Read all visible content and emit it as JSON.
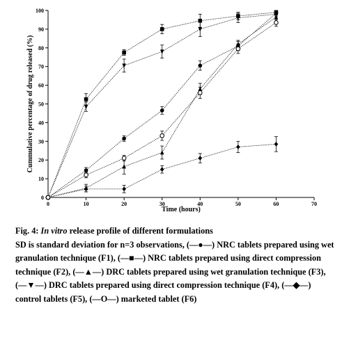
{
  "chart_data": {
    "type": "line",
    "xlabel": "Time (hours)",
    "ylabel": "Cummulative percentage of drug released (%)",
    "xlim": [
      0,
      70
    ],
    "ylim": [
      0,
      100
    ],
    "x_ticks": [
      "0",
      "10",
      "20",
      "30",
      "40",
      "50",
      "60",
      "70"
    ],
    "y_ticks": [
      "0",
      "10",
      "20",
      "30",
      "40",
      "50",
      "60",
      "70",
      "80",
      "90",
      "100"
    ],
    "grid": false,
    "legend": "none",
    "x": [
      0,
      10,
      20,
      30,
      40,
      50,
      60
    ],
    "series": [
      {
        "marker": "circle",
        "values": [
          0,
          14.5,
          31.5,
          46.5,
          70.5,
          81,
          98.5
        ],
        "errors": [
          0,
          1.5,
          1.5,
          2,
          2.5,
          2.5,
          1
        ]
      },
      {
        "marker": "square",
        "values": [
          0,
          52.5,
          77.5,
          90,
          94.5,
          97,
          99
        ],
        "errors": [
          0,
          3,
          1.5,
          2.5,
          3.5,
          2,
          1
        ]
      },
      {
        "marker": "triangle-up",
        "values": [
          0,
          5,
          16.5,
          24,
          58,
          82,
          96.5
        ],
        "errors": [
          0,
          2,
          4,
          3.5,
          3,
          2,
          1.5
        ]
      },
      {
        "marker": "triangle-down",
        "values": [
          0,
          48.5,
          70.5,
          78,
          90,
          96,
          98
        ],
        "errors": [
          0,
          2.5,
          3.5,
          3.5,
          4,
          2.5,
          1
        ]
      },
      {
        "marker": "diamond",
        "values": [
          0,
          4.5,
          4.5,
          15,
          21,
          27,
          28.5
        ],
        "errors": [
          0,
          1.5,
          2,
          2,
          2.5,
          3,
          4
        ]
      },
      {
        "marker": "open-circle",
        "values": [
          0,
          12,
          21,
          33,
          56,
          79.5,
          93.5
        ],
        "errors": [
          0,
          1.5,
          1.5,
          2.5,
          3,
          2.5,
          2
        ]
      }
    ]
  },
  "caption": {
    "fig_number": "Fig. 4:",
    "fig_title_italic": "In vitro",
    "fig_title_rest": "release profile of different formulations",
    "body": "SD is standard deviation for n=3 observations, (—●—) NRC tablets prepared using wet granulation technique (F1), (—■—) NRC tablets prepared using direct compression technique (F2), (—▲—) DRC tablets prepared using wet granulation technique (F3), (—▼—) DRC tablets prepared using direct compression technique (F4), (—◆—) control tablets (F5), (—O—) marketed tablet (F6)"
  }
}
